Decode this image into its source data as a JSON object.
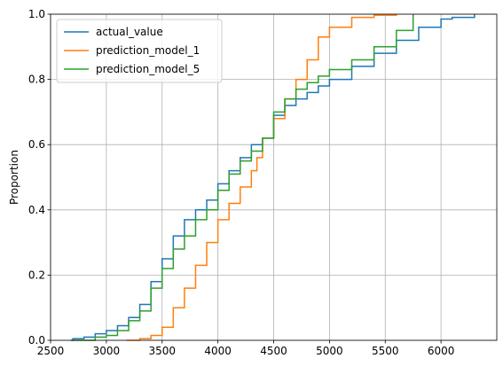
{
  "chart_data": {
    "type": "line",
    "subtype": "ecdf-step",
    "xlabel": "",
    "ylabel": "Proportion",
    "xlim": [
      2500,
      6500
    ],
    "ylim": [
      0,
      1
    ],
    "xticks": [
      2500,
      3000,
      3500,
      4000,
      4500,
      5000,
      5500,
      6000
    ],
    "yticks": [
      0.0,
      0.2,
      0.4,
      0.6,
      0.8,
      1.0
    ],
    "xtick_labels": [
      "2500",
      "3000",
      "3500",
      "4000",
      "4500",
      "5000",
      "5500",
      "6000"
    ],
    "ytick_labels": [
      "0.0",
      "0.2",
      "0.4",
      "0.6",
      "0.8",
      "1.0"
    ],
    "grid": true,
    "legend_position": "top-left",
    "series": [
      {
        "name": "actual_value",
        "color": "#1f77b4",
        "points": [
          [
            2680,
            0.0
          ],
          [
            2700,
            0.005
          ],
          [
            2800,
            0.01
          ],
          [
            2900,
            0.02
          ],
          [
            3000,
            0.03
          ],
          [
            3100,
            0.045
          ],
          [
            3200,
            0.07
          ],
          [
            3300,
            0.11
          ],
          [
            3400,
            0.18
          ],
          [
            3500,
            0.25
          ],
          [
            3600,
            0.32
          ],
          [
            3700,
            0.37
          ],
          [
            3800,
            0.4
          ],
          [
            3900,
            0.43
          ],
          [
            4000,
            0.48
          ],
          [
            4100,
            0.52
          ],
          [
            4200,
            0.56
          ],
          [
            4300,
            0.6
          ],
          [
            4400,
            0.62
          ],
          [
            4500,
            0.69
          ],
          [
            4600,
            0.72
          ],
          [
            4700,
            0.74
          ],
          [
            4800,
            0.76
          ],
          [
            4900,
            0.78
          ],
          [
            5000,
            0.8
          ],
          [
            5200,
            0.84
          ],
          [
            5400,
            0.88
          ],
          [
            5600,
            0.92
          ],
          [
            5800,
            0.96
          ],
          [
            6000,
            0.985
          ],
          [
            6100,
            0.99
          ],
          [
            6300,
            1.0
          ]
        ]
      },
      {
        "name": "prediction_model_1",
        "color": "#ff7f0e",
        "points": [
          [
            3180,
            0.0
          ],
          [
            3300,
            0.005
          ],
          [
            3400,
            0.015
          ],
          [
            3500,
            0.04
          ],
          [
            3600,
            0.1
          ],
          [
            3700,
            0.16
          ],
          [
            3800,
            0.23
          ],
          [
            3900,
            0.3
          ],
          [
            4000,
            0.37
          ],
          [
            4100,
            0.42
          ],
          [
            4200,
            0.47
          ],
          [
            4300,
            0.52
          ],
          [
            4350,
            0.56
          ],
          [
            4400,
            0.62
          ],
          [
            4500,
            0.68
          ],
          [
            4600,
            0.74
          ],
          [
            4700,
            0.8
          ],
          [
            4800,
            0.86
          ],
          [
            4900,
            0.93
          ],
          [
            5000,
            0.96
          ],
          [
            5200,
            0.99
          ],
          [
            5400,
            0.997
          ],
          [
            5600,
            1.0
          ]
        ]
      },
      {
        "name": "prediction_model_5",
        "color": "#2ca02c",
        "points": [
          [
            2700,
            0.0
          ],
          [
            2900,
            0.01
          ],
          [
            3000,
            0.015
          ],
          [
            3100,
            0.03
          ],
          [
            3200,
            0.06
          ],
          [
            3300,
            0.09
          ],
          [
            3400,
            0.16
          ],
          [
            3500,
            0.22
          ],
          [
            3600,
            0.28
          ],
          [
            3700,
            0.32
          ],
          [
            3800,
            0.37
          ],
          [
            3900,
            0.4
          ],
          [
            4000,
            0.46
          ],
          [
            4100,
            0.51
          ],
          [
            4200,
            0.55
          ],
          [
            4300,
            0.58
          ],
          [
            4400,
            0.62
          ],
          [
            4500,
            0.7
          ],
          [
            4600,
            0.74
          ],
          [
            4700,
            0.77
          ],
          [
            4800,
            0.79
          ],
          [
            4900,
            0.81
          ],
          [
            5000,
            0.83
          ],
          [
            5200,
            0.86
          ],
          [
            5400,
            0.9
          ],
          [
            5600,
            0.95
          ],
          [
            5750,
            1.0
          ]
        ]
      }
    ]
  }
}
